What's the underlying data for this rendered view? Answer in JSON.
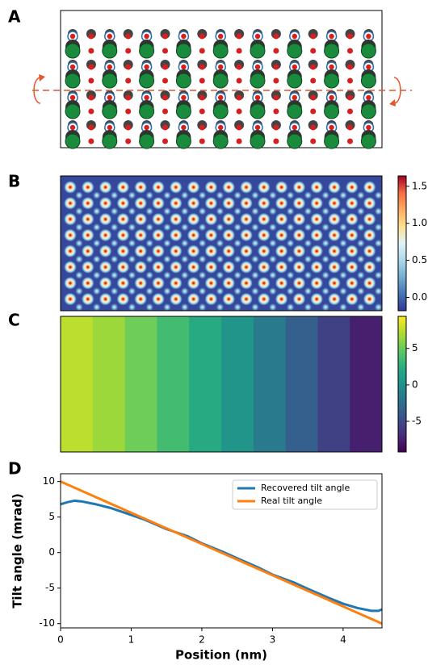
{
  "panel_labels": [
    "A",
    "B",
    "C",
    "D"
  ],
  "chart_data": [
    {
      "type": "colormap-image",
      "colormap": [
        "#313695",
        "#4575b4",
        "#74add1",
        "#abd9e9",
        "#e0f3f8",
        "#fee090",
        "#fdae61",
        "#f46d43",
        "#a50026"
      ],
      "ylim": [
        -0.18,
        1.64
      ],
      "yticks": [
        {
          "value": 0,
          "label": "0.0"
        },
        0.5,
        {
          "value": 1,
          "label": "1.0"
        },
        1.5
      ]
    },
    {
      "type": "heatmap",
      "colormap": [
        "#440154",
        "#472d7b",
        "#3b528b",
        "#2c728e",
        "#21918c",
        "#28ae80",
        "#5ec962",
        "#addc30",
        "#fde725"
      ],
      "values": [
        7.5,
        6.6,
        5.2,
        3.6,
        2.0,
        0.4,
        -1.6,
        -3.6,
        -5.6,
        -7.6
      ],
      "ylim": [
        -9.2,
        9.4
      ],
      "yticks": [
        -5,
        0,
        5
      ]
    },
    {
      "type": "line",
      "series": [
        {
          "name": "Recovered tilt angle",
          "color": "#1f77b4",
          "x": [
            0,
            0.1,
            0.2,
            0.3,
            0.5,
            0.7,
            1.0,
            1.2,
            1.5,
            1.8,
            2.0,
            2.3,
            2.5,
            2.8,
            3.0,
            3.3,
            3.5,
            3.8,
            4.0,
            4.2,
            4.4,
            4.5,
            4.55
          ],
          "values": [
            6.8,
            7.1,
            7.3,
            7.2,
            6.8,
            6.3,
            5.3,
            4.6,
            3.3,
            2.3,
            1.3,
            0.1,
            -0.8,
            -2.1,
            -3.1,
            -4.2,
            -5.1,
            -6.4,
            -7.2,
            -7.8,
            -8.2,
            -8.2,
            -8.0
          ]
        },
        {
          "name": "Real tilt angle",
          "color": "#ff7f0e",
          "x": [
            0,
            4.55
          ],
          "values": [
            10,
            -10
          ]
        }
      ],
      "xlim": [
        0,
        4.55
      ],
      "ylim": [
        -10.6,
        11.1
      ],
      "xticks": [
        0,
        1,
        2,
        3,
        4
      ],
      "yticks": [
        -10,
        -5,
        0,
        5,
        10
      ],
      "xlabel": "Position (nm)",
      "ylabel": "Tilt angle (mrad)",
      "legend": "upper right"
    }
  ]
}
